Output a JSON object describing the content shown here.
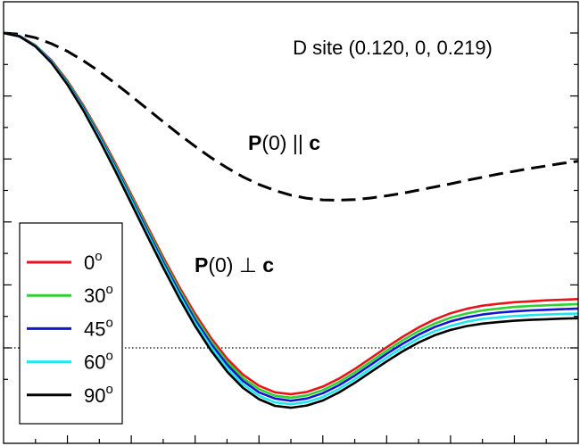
{
  "chart_data": {
    "type": "line",
    "title": "D site (0.120, 0, 0.219)",
    "xlabel": "",
    "ylabel": "",
    "xlim": [
      0,
      18
    ],
    "ylim": [
      -0.15,
      1.0
    ],
    "grid": false,
    "legend_position": "bottom-left",
    "reference_line": {
      "y": 0,
      "style": "dotted"
    },
    "annotations": {
      "parallel": {
        "bold": "P",
        "middle": "(0) || ",
        "bold_end": "c"
      },
      "perpendicular": {
        "bold": "P",
        "middle": "(0) ⊥ ",
        "bold_end": "c"
      }
    },
    "series": [
      {
        "color": "#000000",
        "dashed": true,
        "x": [
          0,
          0.5,
          1,
          1.5,
          2,
          2.5,
          3,
          3.5,
          4,
          4.5,
          5,
          5.5,
          6,
          6.5,
          7,
          7.5,
          8,
          8.5,
          9,
          9.5,
          10,
          10.5,
          11,
          11.5,
          12,
          12.5,
          13,
          13.5,
          14,
          14.5,
          15,
          15.5,
          16,
          16.5,
          17,
          17.5,
          18
        ],
        "values": [
          1.0,
          0.996,
          0.985,
          0.966,
          0.942,
          0.912,
          0.878,
          0.84,
          0.8,
          0.759,
          0.718,
          0.678,
          0.64,
          0.604,
          0.572,
          0.543,
          0.519,
          0.5,
          0.485,
          0.475,
          0.47,
          0.469,
          0.471,
          0.476,
          0.483,
          0.491,
          0.501,
          0.511,
          0.521,
          0.532,
          0.542,
          0.552,
          0.561,
          0.57,
          0.578,
          0.586,
          0.593
        ]
      },
      {
        "name": "0°",
        "color": "#e8141b",
        "x": [
          0,
          0.5,
          1,
          1.5,
          2,
          2.5,
          3,
          3.5,
          4,
          4.5,
          5,
          5.5,
          6,
          6.5,
          7,
          7.5,
          8,
          8.5,
          9,
          9.5,
          10,
          10.5,
          11,
          11.5,
          12,
          12.5,
          13,
          13.5,
          14,
          14.5,
          15,
          15.5,
          16,
          16.5,
          17,
          17.5,
          18
        ],
        "values": [
          1.0,
          0.99,
          0.961,
          0.913,
          0.848,
          0.77,
          0.682,
          0.587,
          0.487,
          0.387,
          0.288,
          0.194,
          0.108,
          0.031,
          -0.034,
          -0.085,
          -0.12,
          -0.141,
          -0.147,
          -0.14,
          -0.123,
          -0.098,
          -0.067,
          -0.033,
          0.002,
          0.035,
          0.065,
          0.09,
          0.11,
          0.124,
          0.134,
          0.14,
          0.145,
          0.148,
          0.151,
          0.153,
          0.155
        ]
      },
      {
        "name": "30°",
        "color": "#2ed12e",
        "x": [
          0,
          0.5,
          1,
          1.5,
          2,
          2.5,
          3,
          3.5,
          4,
          4.5,
          5,
          5.5,
          6,
          6.5,
          7,
          7.5,
          8,
          8.5,
          9,
          9.5,
          10,
          10.5,
          11,
          11.5,
          12,
          12.5,
          13,
          13.5,
          14,
          14.5,
          15,
          15.5,
          16,
          16.5,
          17,
          17.5,
          18
        ],
        "values": [
          1.0,
          0.99,
          0.96,
          0.911,
          0.845,
          0.766,
          0.677,
          0.581,
          0.481,
          0.38,
          0.28,
          0.185,
          0.098,
          0.021,
          -0.044,
          -0.096,
          -0.131,
          -0.152,
          -0.158,
          -0.151,
          -0.134,
          -0.109,
          -0.078,
          -0.044,
          -0.009,
          0.024,
          0.053,
          0.077,
          0.096,
          0.109,
          0.119,
          0.125,
          0.13,
          0.133,
          0.135,
          0.137,
          0.139
        ]
      },
      {
        "name": "45°",
        "color": "#1414d2",
        "x": [
          0,
          0.5,
          1,
          1.5,
          2,
          2.5,
          3,
          3.5,
          4,
          4.5,
          5,
          5.5,
          6,
          6.5,
          7,
          7.5,
          8,
          8.5,
          9,
          9.5,
          10,
          10.5,
          11,
          11.5,
          12,
          12.5,
          13,
          13.5,
          14,
          14.5,
          15,
          15.5,
          16,
          16.5,
          17,
          17.5,
          18
        ],
        "values": [
          1.0,
          0.99,
          0.959,
          0.909,
          0.842,
          0.762,
          0.672,
          0.575,
          0.474,
          0.372,
          0.272,
          0.177,
          0.089,
          0.012,
          -0.053,
          -0.105,
          -0.141,
          -0.161,
          -0.168,
          -0.161,
          -0.144,
          -0.119,
          -0.088,
          -0.054,
          -0.019,
          0.013,
          0.042,
          0.066,
          0.084,
          0.097,
          0.106,
          0.112,
          0.116,
          0.119,
          0.121,
          0.123,
          0.125
        ]
      },
      {
        "name": "60°",
        "color": "#22e6ee",
        "x": [
          0,
          0.5,
          1,
          1.5,
          2,
          2.5,
          3,
          3.5,
          4,
          4.5,
          5,
          5.5,
          6,
          6.5,
          7,
          7.5,
          8,
          8.5,
          9,
          9.5,
          10,
          10.5,
          11,
          11.5,
          12,
          12.5,
          13,
          13.5,
          14,
          14.5,
          15,
          15.5,
          16,
          16.5,
          17,
          17.5,
          18
        ],
        "values": [
          1.0,
          0.989,
          0.958,
          0.907,
          0.839,
          0.758,
          0.667,
          0.569,
          0.467,
          0.364,
          0.264,
          0.168,
          0.079,
          0.002,
          -0.064,
          -0.116,
          -0.152,
          -0.173,
          -0.179,
          -0.172,
          -0.156,
          -0.131,
          -0.1,
          -0.066,
          -0.031,
          0.001,
          0.03,
          0.053,
          0.07,
          0.083,
          0.092,
          0.097,
          0.101,
          0.104,
          0.106,
          0.108,
          0.109
        ]
      },
      {
        "name": "90°",
        "color": "#000000",
        "x": [
          0,
          0.5,
          1,
          1.5,
          2,
          2.5,
          3,
          3.5,
          4,
          4.5,
          5,
          5.5,
          6,
          6.5,
          7,
          7.5,
          8,
          8.5,
          9,
          9.5,
          10,
          10.5,
          11,
          11.5,
          12,
          12.5,
          13,
          13.5,
          14,
          14.5,
          15,
          15.5,
          16,
          16.5,
          17,
          17.5,
          18
        ],
        "values": [
          1.0,
          0.989,
          0.957,
          0.905,
          0.836,
          0.754,
          0.661,
          0.562,
          0.459,
          0.356,
          0.255,
          0.158,
          0.069,
          -0.009,
          -0.075,
          -0.127,
          -0.163,
          -0.184,
          -0.19,
          -0.183,
          -0.167,
          -0.142,
          -0.111,
          -0.077,
          -0.043,
          -0.011,
          0.017,
          0.04,
          0.057,
          0.069,
          0.077,
          0.082,
          0.086,
          0.089,
          0.091,
          0.093,
          0.094
        ]
      }
    ]
  }
}
